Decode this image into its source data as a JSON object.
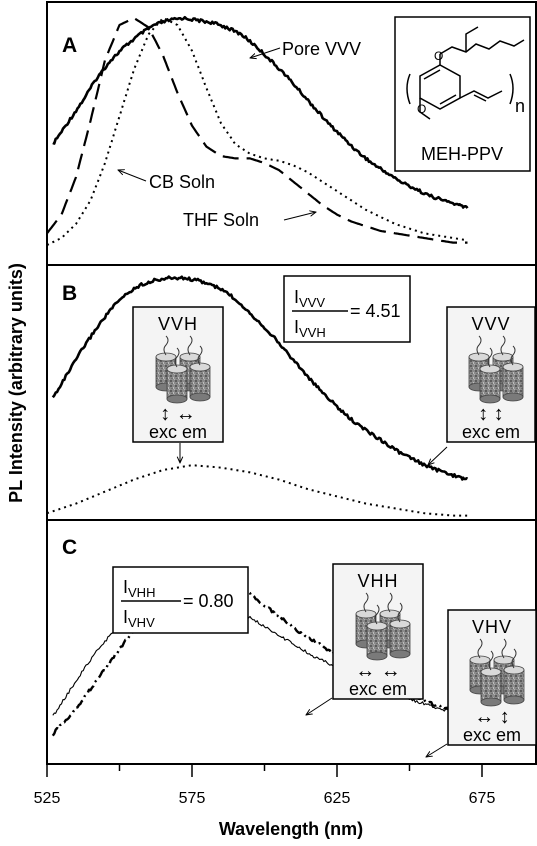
{
  "chart_data": {
    "type": "line",
    "xlabel": "Wavelength (nm)",
    "ylabel": "PL Intensity (arbitrary units)",
    "xlim": [
      525,
      695
    ],
    "x_ticks": [
      525,
      575,
      625,
      675
    ],
    "grid": false,
    "panels": [
      {
        "letter": "A",
        "series": [
          {
            "name": "Pore VVV",
            "style": "solid-thick",
            "x": [
              527,
              532,
              537,
              542,
              547,
              552,
              557,
              562,
              567,
              572,
              577,
              582,
              587,
              592,
              597,
              602,
              607,
              612,
              617,
              622,
              627,
              632,
              637,
              642,
              647,
              652,
              657,
              662,
              667,
              670
            ],
            "y": [
              0.46,
              0.55,
              0.64,
              0.74,
              0.82,
              0.88,
              0.93,
              0.97,
              0.99,
              1.0,
              0.99,
              0.98,
              0.96,
              0.93,
              0.88,
              0.82,
              0.76,
              0.69,
              0.62,
              0.55,
              0.49,
              0.43,
              0.38,
              0.34,
              0.3,
              0.27,
              0.24,
              0.22,
              0.2,
              0.19
            ]
          },
          {
            "name": "CB Soln",
            "style": "long-dash",
            "x": [
              525,
              530,
              535,
              540,
              545,
              550,
              555,
              560,
              565,
              570,
              575,
              580,
              585,
              590,
              595,
              600,
              605,
              610,
              615,
              620,
              625,
              630,
              635,
              640,
              645,
              650,
              655,
              660,
              665,
              670
            ],
            "y": [
              0.08,
              0.16,
              0.32,
              0.56,
              0.82,
              0.97,
              1.0,
              0.96,
              0.84,
              0.68,
              0.54,
              0.45,
              0.41,
              0.4,
              0.4,
              0.38,
              0.35,
              0.3,
              0.25,
              0.2,
              0.16,
              0.13,
              0.11,
              0.09,
              0.08,
              0.07,
              0.06,
              0.05,
              0.04,
              0.04
            ]
          },
          {
            "name": "THF Soln",
            "style": "dotted",
            "x": [
              525,
              530,
              535,
              540,
              545,
              550,
              555,
              560,
              565,
              570,
              575,
              580,
              585,
              590,
              595,
              600,
              605,
              610,
              615,
              620,
              625,
              630,
              635,
              640,
              645,
              650,
              655,
              660,
              665,
              670
            ],
            "y": [
              0.03,
              0.06,
              0.12,
              0.22,
              0.38,
              0.58,
              0.78,
              0.93,
              1.0,
              0.97,
              0.86,
              0.7,
              0.55,
              0.46,
              0.42,
              0.4,
              0.39,
              0.37,
              0.34,
              0.3,
              0.26,
              0.22,
              0.18,
              0.15,
              0.12,
              0.1,
              0.08,
              0.07,
              0.06,
              0.05
            ]
          }
        ],
        "annotations": [
          "Pore VVV",
          "CB Soln",
          "THF Soln"
        ],
        "inset_label": "MEH-PPV",
        "inset_subscript": "n"
      },
      {
        "letter": "B",
        "series": [
          {
            "name": "VVV",
            "style": "solid-thick",
            "x": [
              527,
              532,
              537,
              542,
              547,
              552,
              557,
              562,
              567,
              572,
              577,
              582,
              587,
              592,
              597,
              602,
              607,
              612,
              617,
              622,
              627,
              632,
              637,
              642,
              647,
              652,
              657,
              662,
              667,
              670
            ],
            "y": [
              0.5,
              0.6,
              0.7,
              0.79,
              0.87,
              0.93,
              0.97,
              0.99,
              1.0,
              1.0,
              0.99,
              0.97,
              0.94,
              0.89,
              0.83,
              0.77,
              0.7,
              0.63,
              0.56,
              0.5,
              0.44,
              0.39,
              0.35,
              0.31,
              0.27,
              0.24,
              0.21,
              0.19,
              0.17,
              0.16
            ]
          },
          {
            "name": "VVH",
            "style": "dotted",
            "x": [
              525,
              535,
              545,
              555,
              565,
              575,
              585,
              595,
              605,
              615,
              625,
              635,
              645,
              655,
              665,
              670
            ],
            "y": [
              0.02,
              0.06,
              0.11,
              0.16,
              0.2,
              0.22,
              0.21,
              0.19,
              0.16,
              0.12,
              0.09,
              0.06,
              0.04,
              0.02,
              0.01,
              0.01
            ]
          }
        ],
        "ratio": {
          "numerator": "I",
          "numerator_sub": "VVV",
          "denominator": "I",
          "denominator_sub": "VVH",
          "value": "= 4.51"
        },
        "insets": [
          {
            "title": "VVH",
            "arrows": "↕  ↔",
            "caption": "exc em"
          },
          {
            "title": "VVV",
            "arrows": "↕  ↕",
            "caption": "exc em"
          }
        ]
      },
      {
        "letter": "C",
        "series": [
          {
            "name": "VHH",
            "style": "dash-dot",
            "x": [
              527,
              532,
              537,
              542,
              547,
              552,
              557,
              562,
              567,
              572,
              577,
              582,
              587,
              592,
              597,
              602,
              607,
              612,
              617,
              622,
              627,
              632,
              637,
              642,
              647,
              652,
              657,
              662,
              667,
              670
            ],
            "y": [
              0.08,
              0.15,
              0.23,
              0.32,
              0.41,
              0.5,
              0.58,
              0.66,
              0.73,
              0.79,
              0.82,
              0.81,
              0.78,
              0.74,
              0.69,
              0.64,
              0.59,
              0.54,
              0.5,
              0.46,
              0.42,
              0.38,
              0.35,
              0.31,
              0.28,
              0.25,
              0.22,
              0.2,
              0.17,
              0.16
            ]
          },
          {
            "name": "VHV",
            "style": "solid-thin",
            "x": [
              527,
              532,
              537,
              542,
              547,
              552,
              557,
              562,
              567,
              572,
              577,
              582,
              587,
              592,
              597,
              602,
              607,
              612,
              617,
              622,
              627,
              632,
              637,
              642,
              647,
              652,
              657,
              662,
              667,
              670
            ],
            "y": [
              0.16,
              0.26,
              0.36,
              0.45,
              0.53,
              0.59,
              0.64,
              0.68,
              0.71,
              0.72,
              0.72,
              0.7,
              0.67,
              0.63,
              0.59,
              0.55,
              0.51,
              0.47,
              0.43,
              0.4,
              0.37,
              0.34,
              0.31,
              0.28,
              0.25,
              0.23,
              0.21,
              0.19,
              0.17,
              0.16
            ]
          }
        ],
        "ratio": {
          "numerator": "I",
          "numerator_sub": "VHH",
          "denominator": "I",
          "denominator_sub": "VHV",
          "value": "= 0.80"
        },
        "insets": [
          {
            "title": "VHH",
            "arrows": "↔  ↔",
            "caption": "exc em"
          },
          {
            "title": "VHV",
            "arrows": "↔  ↕",
            "caption": "exc em"
          }
        ]
      }
    ]
  }
}
